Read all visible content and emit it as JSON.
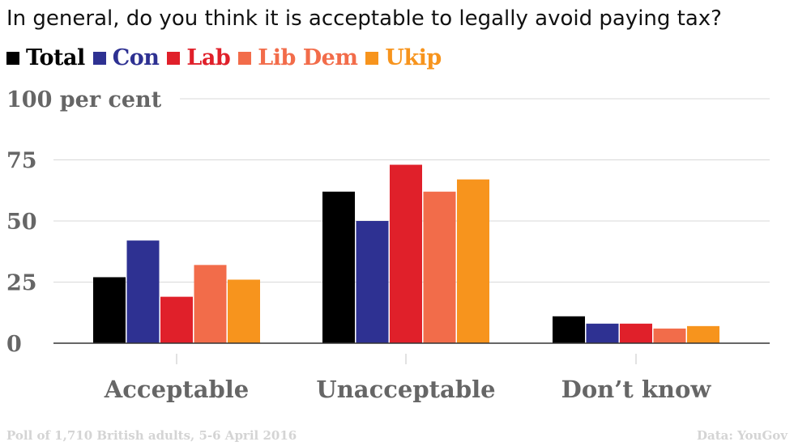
{
  "title": "In general, do you think it is acceptable to legally avoid paying tax?",
  "footer": {
    "source_note": "Poll of 1,710 British adults, 5-6 April 2016",
    "credit": "Data: YouGov"
  },
  "colors": {
    "Total": "#000000",
    "Con": "#2e3192",
    "Lab": "#e0202a",
    "Lib Dem": "#f26c4a",
    "Ukip": "#f7941d",
    "grid": "#d9d9d9",
    "axis": "#333333",
    "tick_label": "#666666"
  },
  "chart_data": {
    "type": "bar",
    "title": "In general, do you think it is acceptable to legally avoid paying tax?",
    "categories": [
      "Acceptable",
      "Unacceptable",
      "Don’t know"
    ],
    "series": [
      {
        "name": "Total",
        "values": [
          27,
          62,
          11
        ]
      },
      {
        "name": "Con",
        "values": [
          42,
          50,
          8
        ]
      },
      {
        "name": "Lab",
        "values": [
          19,
          73,
          8
        ]
      },
      {
        "name": "Lib Dem",
        "values": [
          32,
          62,
          6
        ]
      },
      {
        "name": "Ukip",
        "values": [
          26,
          67,
          7
        ]
      }
    ],
    "ylim": [
      0,
      100
    ],
    "yticks": [
      0,
      25,
      50,
      75,
      100
    ],
    "ytick_labels": [
      "0",
      "25",
      "50",
      "75",
      "100 per cent"
    ],
    "xlabel": "",
    "ylabel": "",
    "grid": true,
    "legend_position": "top-left"
  }
}
